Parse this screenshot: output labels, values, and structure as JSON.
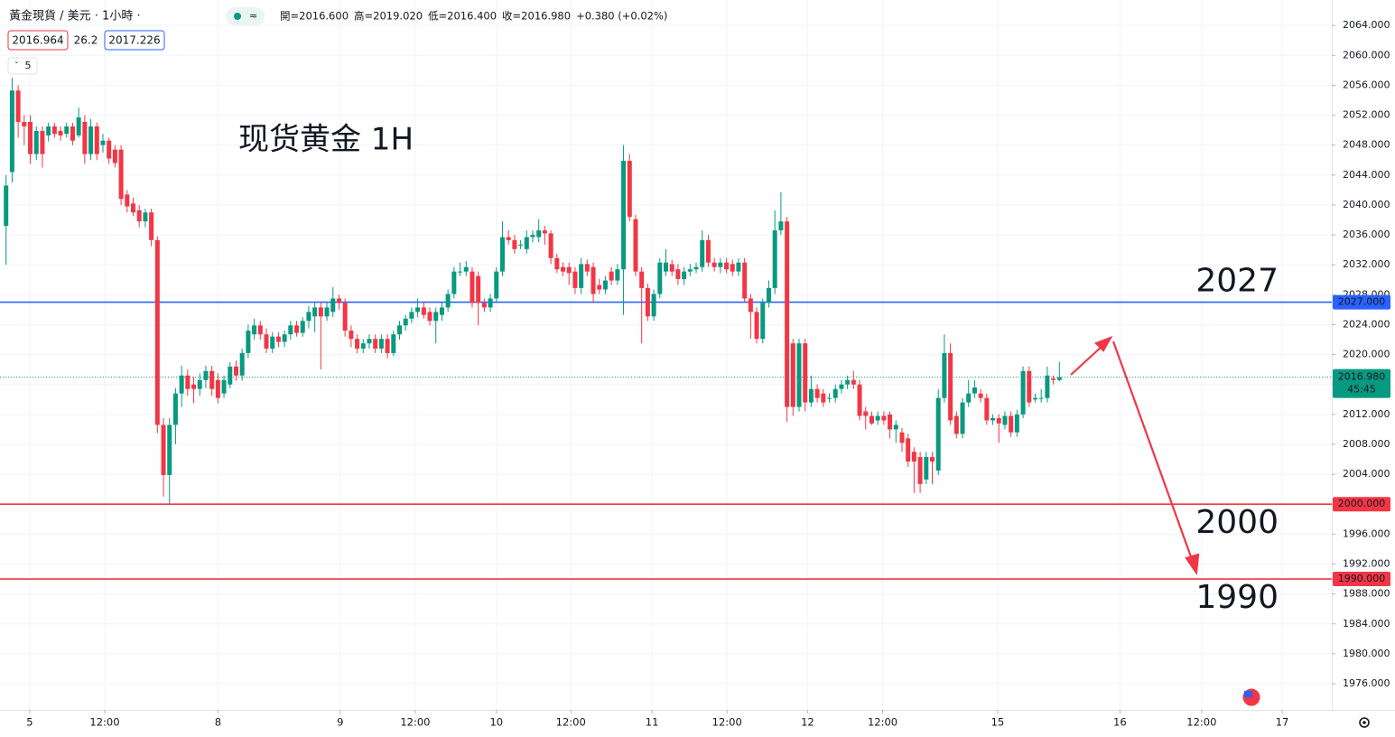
{
  "chart_data": {
    "type": "candlestick",
    "symbol": "黃金現貨 / 美元 · 1小時 ·",
    "ohlc": [
      "開=2016.600",
      "高=2019.020",
      "低=2016.400",
      "收=2016.980",
      "+0.380 (+0.02%)"
    ],
    "bid": "2016.964",
    "spread": "26.2",
    "ask": "2017.226",
    "interval_badge": "5",
    "title": "现货黄金 1H",
    "up_color": "#089981",
    "down_color": "#f23645",
    "ylim": [
      1972.5,
      2067.4
    ],
    "yticks": [
      {
        "value": 1976,
        "label": "1976.000"
      },
      {
        "value": 1980,
        "label": "1980.000"
      },
      {
        "value": 1984,
        "label": "1984.000"
      },
      {
        "value": 1988,
        "label": "1988.000"
      },
      {
        "value": 1992,
        "label": "1992.000"
      },
      {
        "value": 1996,
        "label": "1996.000"
      },
      {
        "value": 2000,
        "label": "2000.000"
      },
      {
        "value": 2004,
        "label": "2004.000"
      },
      {
        "value": 2008,
        "label": "2008.000"
      },
      {
        "value": 2012,
        "label": "2012.000"
      },
      {
        "value": 2016,
        "label": "2016.000"
      },
      {
        "value": 2020,
        "label": "2020.000"
      },
      {
        "value": 2024,
        "label": "2024.000"
      },
      {
        "value": 2028,
        "label": "2028.000"
      },
      {
        "value": 2032,
        "label": "2032.000"
      },
      {
        "value": 2036,
        "label": "2036.000"
      },
      {
        "value": 2040,
        "label": "2040.000"
      },
      {
        "value": 2044,
        "label": "2044.000"
      },
      {
        "value": 2048,
        "label": "2048.000"
      },
      {
        "value": 2052,
        "label": "2052.000"
      },
      {
        "value": 2056,
        "label": "2056.000"
      },
      {
        "value": 2060,
        "label": "2060.000"
      },
      {
        "value": 2064,
        "label": "2064.000"
      }
    ],
    "xlim": [
      -1,
      219
    ],
    "xticks": [
      {
        "value": 3.9,
        "label": "5"
      },
      {
        "value": 16.3,
        "label": "12:00"
      },
      {
        "value": 35,
        "label": "8"
      },
      {
        "value": 55.2,
        "label": "9"
      },
      {
        "value": 67.6,
        "label": "12:00"
      },
      {
        "value": 81,
        "label": "10"
      },
      {
        "value": 93.3,
        "label": "12:00"
      },
      {
        "value": 106.7,
        "label": "11"
      },
      {
        "value": 119.1,
        "label": "12:00"
      },
      {
        "value": 132.4,
        "label": "12"
      },
      {
        "value": 144.8,
        "label": "12:00"
      },
      {
        "value": 163.8,
        "label": "15"
      },
      {
        "value": 184,
        "label": "16"
      },
      {
        "value": 197.5,
        "label": "12:00"
      },
      {
        "value": 210.8,
        "label": "17"
      }
    ],
    "grid": true,
    "levels": [
      {
        "value": 2027,
        "label": "2027.000",
        "note": "2027",
        "color": "#2962ff"
      },
      {
        "value": 2000,
        "label": "2000.000",
        "note": "2000",
        "color": "#f23645"
      },
      {
        "value": 1990,
        "label": "1990.000",
        "note": "1990",
        "color": "#f23645"
      }
    ],
    "last": {
      "value": 2016.98,
      "label": "2016.980",
      "countdown": "45:45"
    },
    "candles": [
      [
        2037.2,
        2044,
        2032,
        2042.6
      ],
      [
        2044.4,
        2057,
        2043,
        2055.3
      ],
      [
        2055.3,
        2056,
        2049,
        2051.1
      ],
      [
        2051.1,
        2052,
        2048,
        2050.5
      ],
      [
        2051.1,
        2052,
        2045.5,
        2046.8
      ],
      [
        2046.8,
        2050.5,
        2046,
        2049.9
      ],
      [
        2049.9,
        2050.5,
        2045,
        2046.8
      ],
      [
        2049.3,
        2051,
        2048.5,
        2050.5
      ],
      [
        2050.5,
        2051,
        2049,
        2049.5
      ],
      [
        2049.9,
        2050.5,
        2048.6,
        2049.3
      ],
      [
        2049.5,
        2051,
        2049,
        2050.5
      ],
      [
        2050.5,
        2051,
        2048,
        2048.6
      ],
      [
        2049.3,
        2053,
        2049,
        2051.7
      ],
      [
        2051.1,
        2052,
        2045.5,
        2046.8
      ],
      [
        2046.8,
        2051.5,
        2046,
        2050.5
      ],
      [
        2050.5,
        2051,
        2046,
        2046.8
      ],
      [
        2048.0,
        2049.5,
        2047,
        2048.6
      ],
      [
        2048.6,
        2049,
        2045.5,
        2046.2
      ],
      [
        2047.4,
        2048,
        2045,
        2045.6
      ],
      [
        2047.4,
        2048,
        2040,
        2040.8
      ],
      [
        2041.4,
        2042,
        2039,
        2039.8
      ],
      [
        2040.2,
        2041,
        2038.5,
        2039.0
      ],
      [
        2039.3,
        2040,
        2037,
        2037.8
      ],
      [
        2037.8,
        2039.5,
        2037,
        2039.0
      ],
      [
        2039.0,
        2039.5,
        2034.5,
        2035.3
      ],
      [
        2035.3,
        2035.8,
        2009.5,
        2010.6
      ],
      [
        2010.6,
        2011.5,
        2001,
        2003.9
      ],
      [
        2003.9,
        2011.5,
        2000,
        2010.6
      ],
      [
        2010.6,
        2015.5,
        2008,
        2014.8
      ],
      [
        2014.8,
        2018.5,
        2013,
        2017.2
      ],
      [
        2017.2,
        2018,
        2014.5,
        2015.4
      ],
      [
        2016.0,
        2017,
        2013.5,
        2015.4
      ],
      [
        2015.4,
        2017.5,
        2014.5,
        2016.6
      ],
      [
        2016.6,
        2018.5,
        2015.5,
        2017.8
      ],
      [
        2017.8,
        2018.5,
        2014.5,
        2015.4
      ],
      [
        2016.6,
        2017.5,
        2013.5,
        2014.2
      ],
      [
        2014.8,
        2017.2,
        2014.2,
        2016.6
      ],
      [
        2016.0,
        2019,
        2015.5,
        2018.4
      ],
      [
        2018.4,
        2019.2,
        2016.5,
        2017.2
      ],
      [
        2017.2,
        2020.8,
        2016.5,
        2020.2
      ],
      [
        2020.2,
        2024,
        2019.5,
        2023.2
      ],
      [
        2022.7,
        2024.8,
        2022,
        2023.9
      ],
      [
        2023.9,
        2024.5,
        2022,
        2022.7
      ],
      [
        2022.7,
        2023.5,
        2020.2,
        2020.8
      ],
      [
        2020.8,
        2023,
        2020.2,
        2022.4
      ],
      [
        2022.4,
        2023,
        2021,
        2021.7
      ],
      [
        2021.7,
        2023.2,
        2021,
        2022.7
      ],
      [
        2022.7,
        2024.5,
        2022,
        2023.9
      ],
      [
        2023.9,
        2024.5,
        2022.4,
        2022.9
      ],
      [
        2022.9,
        2025,
        2022.4,
        2024.5
      ],
      [
        2024.5,
        2026.5,
        2023.5,
        2025.7
      ],
      [
        2025.1,
        2027,
        2023,
        2026.3
      ],
      [
        2026.3,
        2027,
        2018,
        2025.1
      ],
      [
        2025.1,
        2027,
        2024.5,
        2026.3
      ],
      [
        2025.7,
        2029,
        2025,
        2027.5
      ],
      [
        2027.5,
        2028,
        2026,
        2026.9
      ],
      [
        2026.9,
        2027.5,
        2022.4,
        2023.2
      ],
      [
        2023.2,
        2023.9,
        2021,
        2022.1
      ],
      [
        2022.1,
        2022.7,
        2020.2,
        2020.8
      ],
      [
        2020.8,
        2022.1,
        2020.2,
        2021.5
      ],
      [
        2021.5,
        2022.7,
        2020.8,
        2022.1
      ],
      [
        2022.1,
        2022.7,
        2020.2,
        2020.8
      ],
      [
        2020.8,
        2022.7,
        2020.2,
        2022.1
      ],
      [
        2022.1,
        2022.7,
        2019.5,
        2020.2
      ],
      [
        2020.2,
        2023.2,
        2019.8,
        2022.7
      ],
      [
        2022.7,
        2024.5,
        2022,
        2023.9
      ],
      [
        2023.9,
        2025.3,
        2023.2,
        2024.8
      ],
      [
        2024.8,
        2026.3,
        2024.2,
        2025.7
      ],
      [
        2025.7,
        2027.5,
        2025,
        2026.3
      ],
      [
        2026.3,
        2027,
        2024.8,
        2025.3
      ],
      [
        2025.7,
        2026.3,
        2023.9,
        2024.5
      ],
      [
        2024.5,
        2026.3,
        2021.5,
        2025.7
      ],
      [
        2025.3,
        2026.9,
        2024.5,
        2026.3
      ],
      [
        2026.3,
        2028.7,
        2025.7,
        2028.1
      ],
      [
        2028.1,
        2031.7,
        2027.5,
        2031.1
      ],
      [
        2031.1,
        2032.3,
        2030.5,
        2031.1
      ],
      [
        2031.1,
        2032.5,
        2030.5,
        2031.7
      ],
      [
        2031.1,
        2031.7,
        2026.3,
        2026.9
      ],
      [
        2030.5,
        2031.1,
        2023.9,
        2026.9
      ],
      [
        2026.9,
        2027.5,
        2025.7,
        2026.3
      ],
      [
        2026.3,
        2028.1,
        2025.7,
        2027.5
      ],
      [
        2027.5,
        2031.7,
        2026.9,
        2031.1
      ],
      [
        2031.1,
        2037.8,
        2030.5,
        2035.7
      ],
      [
        2035.7,
        2036.6,
        2034.7,
        2035.3
      ],
      [
        2035.3,
        2036.0,
        2033.5,
        2034.1
      ],
      [
        2034.7,
        2035.3,
        2034.1,
        2034.7
      ],
      [
        2034.1,
        2036.6,
        2033.5,
        2035.7
      ],
      [
        2035.7,
        2036.6,
        2035,
        2036.0
      ],
      [
        2035.7,
        2038.1,
        2035,
        2036.6
      ],
      [
        2036.6,
        2037.2,
        2034.7,
        2036.2
      ],
      [
        2036.2,
        2036.6,
        2032.1,
        2032.9
      ],
      [
        2032.9,
        2033.5,
        2030.9,
        2031.4
      ],
      [
        2031.7,
        2032.3,
        2030.5,
        2031.1
      ],
      [
        2031.7,
        2032.3,
        2029.3,
        2030.9
      ],
      [
        2031.1,
        2031.7,
        2028.1,
        2028.9
      ],
      [
        2028.9,
        2032.9,
        2028.1,
        2032.1
      ],
      [
        2032.1,
        2032.7,
        2030.5,
        2031.1
      ],
      [
        2031.7,
        2032.3,
        2026.9,
        2028.1
      ],
      [
        2029.3,
        2030.1,
        2028.1,
        2028.7
      ],
      [
        2028.7,
        2030.5,
        2028.1,
        2029.9
      ],
      [
        2031.1,
        2031.7,
        2029.3,
        2029.9
      ],
      [
        2029.9,
        2032.1,
        2029.3,
        2031.4
      ],
      [
        2031.4,
        2048.0,
        2025.3,
        2045.9
      ],
      [
        2045.9,
        2046.8,
        2037.8,
        2038.4
      ],
      [
        2038.1,
        2038.7,
        2030.5,
        2031.1
      ],
      [
        2031.1,
        2031.7,
        2021.5,
        2028.9
      ],
      [
        2028.9,
        2029.5,
        2024.5,
        2025.1
      ],
      [
        2025.1,
        2028.7,
        2024.5,
        2028.1
      ],
      [
        2028.1,
        2032.9,
        2027.5,
        2032.3
      ],
      [
        2031.1,
        2034.1,
        2030.5,
        2032.3
      ],
      [
        2032.1,
        2032.7,
        2030.5,
        2031.1
      ],
      [
        2031.4,
        2032.1,
        2029.3,
        2030.1
      ],
      [
        2030.1,
        2031.7,
        2029.3,
        2031.1
      ],
      [
        2031.1,
        2032.1,
        2030.5,
        2031.4
      ],
      [
        2031.4,
        2032.3,
        2030.9,
        2031.7
      ],
      [
        2031.7,
        2036.6,
        2031.1,
        2035.3
      ],
      [
        2035.3,
        2036.0,
        2031.7,
        2032.3
      ],
      [
        2032.3,
        2032.9,
        2031.1,
        2031.7
      ],
      [
        2031.7,
        2032.9,
        2030.9,
        2032.3
      ],
      [
        2032.3,
        2032.9,
        2030.9,
        2031.4
      ],
      [
        2032.1,
        2032.7,
        2030.5,
        2031.1
      ],
      [
        2031.1,
        2032.9,
        2030.5,
        2032.3
      ],
      [
        2032.3,
        2032.9,
        2026.9,
        2027.5
      ],
      [
        2027.5,
        2028.1,
        2022.1,
        2025.7
      ],
      [
        2025.7,
        2026.3,
        2021.5,
        2022.1
      ],
      [
        2022.1,
        2027.5,
        2021.5,
        2026.9
      ],
      [
        2026.9,
        2029.9,
        2026.3,
        2028.9
      ],
      [
        2028.9,
        2039.3,
        2028.1,
        2036.6
      ],
      [
        2036.6,
        2041.7,
        2036.0,
        2037.8
      ],
      [
        2037.8,
        2038.4,
        2011.0,
        2013.0
      ],
      [
        2021.5,
        2022.1,
        2011.8,
        2013.0
      ],
      [
        2013.0,
        2022.1,
        2012.4,
        2021.5
      ],
      [
        2021.5,
        2022.1,
        2012.4,
        2013.6
      ],
      [
        2013.6,
        2017.2,
        2013.0,
        2015.4
      ],
      [
        2015.4,
        2016.0,
        2013.6,
        2014.2
      ],
      [
        2014.8,
        2015.4,
        2013.0,
        2013.6
      ],
      [
        2014.2,
        2014.8,
        2013.6,
        2014.2
      ],
      [
        2014.2,
        2016.0,
        2013.6,
        2015.4
      ],
      [
        2015.4,
        2016.6,
        2014.8,
        2016.0
      ],
      [
        2016.0,
        2017.2,
        2015.4,
        2016.6
      ],
      [
        2016.6,
        2017.8,
        2015.4,
        2016.0
      ],
      [
        2016.0,
        2016.6,
        2011.2,
        2011.8
      ],
      [
        2012.4,
        2013.0,
        2010.0,
        2011.8
      ],
      [
        2011.8,
        2012.4,
        2010.6,
        2010.8
      ],
      [
        2011.2,
        2012.4,
        2010.6,
        2011.8
      ],
      [
        2011.8,
        2012.4,
        2010.6,
        2011.2
      ],
      [
        2012.0,
        2012.4,
        2008.8,
        2010.0
      ],
      [
        2010.0,
        2011.2,
        2008.2,
        2010.6
      ],
      [
        2009.6,
        2010.2,
        2007.0,
        2008.2
      ],
      [
        2008.8,
        2009.4,
        2005.0,
        2005.7
      ],
      [
        2007.0,
        2007.6,
        2001.5,
        2005.7
      ],
      [
        2006.3,
        2007.0,
        2001.5,
        2002.7
      ],
      [
        2003.3,
        2007.0,
        2002.7,
        2006.3
      ],
      [
        2006.3,
        2007.0,
        2002.7,
        2005.7
      ],
      [
        2004.5,
        2015.4,
        2003.9,
        2014.2
      ],
      [
        2014.2,
        2022.7,
        2013.6,
        2020.2
      ],
      [
        2020.2,
        2021.5,
        2010.6,
        2011.2
      ],
      [
        2011.8,
        2012.4,
        2008.8,
        2009.4
      ],
      [
        2009.4,
        2014.2,
        2008.8,
        2013.6
      ],
      [
        2013.6,
        2016.6,
        2013.0,
        2014.8
      ],
      [
        2014.8,
        2016.6,
        2014.2,
        2015.6
      ],
      [
        2014.8,
        2015.4,
        2013.6,
        2014.2
      ],
      [
        2014.2,
        2014.8,
        2010.6,
        2011.2
      ],
      [
        2011.2,
        2012.0,
        2010.6,
        2011.5
      ],
      [
        2011.5,
        2012.0,
        2008.2,
        2010.8
      ],
      [
        2010.6,
        2012.4,
        2010.0,
        2011.8
      ],
      [
        2011.8,
        2012.4,
        2009.0,
        2009.6
      ],
      [
        2009.6,
        2012.6,
        2009.0,
        2012.0
      ],
      [
        2012.0,
        2018.4,
        2011.5,
        2017.8
      ],
      [
        2017.8,
        2018.4,
        2013.0,
        2013.6
      ],
      [
        2014.0,
        2014.8,
        2013.6,
        2014.2
      ],
      [
        2014.2,
        2015.4,
        2013.6,
        2014.2
      ],
      [
        2014.2,
        2018.4,
        2013.6,
        2017.2
      ],
      [
        2016.8,
        2017.2,
        2016.0,
        2016.6
      ],
      [
        2016.6,
        2019.02,
        2016.4,
        2016.98
      ]
    ]
  }
}
